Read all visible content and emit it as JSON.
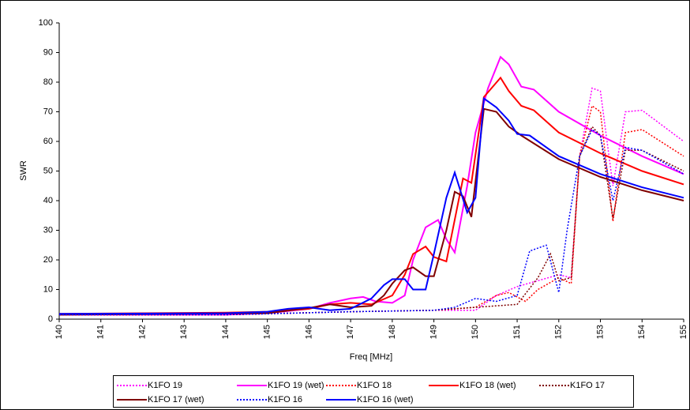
{
  "chart_data": {
    "type": "line",
    "x_label": "Freq [MHz]",
    "y_label": "SWR",
    "xlim": [
      140,
      155
    ],
    "xticks": [
      140,
      141,
      142,
      143,
      144,
      145,
      146,
      147,
      148,
      149,
      150,
      151,
      152,
      153,
      154,
      155
    ],
    "ylim": [
      0,
      100
    ],
    "yticks": [
      0,
      10,
      20,
      30,
      40,
      50,
      60,
      70,
      80,
      90,
      100
    ],
    "legend": "bottom",
    "series": [
      {
        "name": "K1FO 19",
        "color": "#ff00ff",
        "style": "dotted",
        "x": [
          140,
          144,
          147,
          149,
          150,
          150.5,
          151,
          151.5,
          152,
          152.3,
          152.5,
          152.8,
          153,
          153.3,
          153.6,
          154,
          155
        ],
        "values": [
          1.5,
          1.5,
          2.5,
          3,
          3,
          8,
          11,
          13,
          15,
          14,
          55,
          78,
          77,
          45,
          70,
          70.5,
          60
        ]
      },
      {
        "name": "K1FO 19 (wet)",
        "color": "#ff00ff",
        "style": "solid",
        "x": [
          140,
          144,
          145,
          146,
          146.5,
          147,
          147.3,
          147.6,
          148,
          148.3,
          148.5,
          148.8,
          149.1,
          149.3,
          149.5,
          149.8,
          150,
          150.3,
          150.6,
          150.8,
          151.1,
          151.4,
          152,
          153,
          154,
          155
        ],
        "values": [
          1.5,
          1.5,
          2,
          3.5,
          5.5,
          7,
          7.5,
          6,
          5.5,
          8,
          20,
          31,
          33.5,
          27,
          22.5,
          45,
          63,
          78,
          88.5,
          86,
          78.5,
          77.5,
          70,
          62,
          55,
          49
        ]
      },
      {
        "name": "K1FO 18",
        "color": "#ff0000",
        "style": "dotted",
        "x": [
          140,
          144,
          147,
          149,
          150,
          150.5,
          150.8,
          151.2,
          151.5,
          152,
          152.3,
          152.5,
          152.8,
          153,
          153.3,
          153.6,
          154,
          155
        ],
        "values": [
          1.5,
          1.5,
          2.5,
          3,
          4,
          8,
          9,
          6,
          10,
          14,
          12,
          55,
          72,
          70,
          33,
          63,
          64,
          55
        ]
      },
      {
        "name": "K1FO 18 (wet)",
        "color": "#ff0000",
        "style": "solid",
        "x": [
          140,
          144,
          145,
          146,
          146.5,
          147,
          147.5,
          148,
          148.3,
          148.5,
          148.8,
          149,
          149.3,
          149.7,
          149.9,
          150.2,
          150.6,
          150.8,
          151.1,
          151.4,
          152,
          153,
          154,
          155
        ],
        "values": [
          1.8,
          2.2,
          2.5,
          3.5,
          5,
          5.5,
          5,
          8,
          15,
          22,
          24.5,
          21,
          19.5,
          47.5,
          46,
          75,
          81.5,
          77,
          72,
          70.5,
          63,
          56,
          50,
          45.5
        ]
      },
      {
        "name": "K1FO 17",
        "color": "#800000",
        "style": "dotted",
        "x": [
          140,
          144,
          147,
          149,
          150,
          151,
          151.5,
          151.8,
          152,
          152.3,
          152.5,
          152.8,
          153,
          153.3,
          153.6,
          154,
          155
        ],
        "values": [
          1.5,
          1.5,
          2.5,
          3,
          4,
          5,
          14,
          22,
          13,
          14,
          55,
          65,
          62,
          34,
          57,
          57,
          50
        ]
      },
      {
        "name": "K1FO 17 (wet)",
        "color": "#800000",
        "style": "solid",
        "x": [
          140,
          145,
          146,
          146.5,
          147,
          147.5,
          147.8,
          148,
          148.3,
          148.5,
          148.8,
          149,
          149.3,
          149.5,
          149.7,
          149.9,
          150.2,
          150.5,
          150.8,
          151.1,
          152,
          153,
          154,
          155
        ],
        "values": [
          1.5,
          2,
          3.8,
          5,
          4,
          4.5,
          8,
          12,
          16.5,
          17.5,
          14.5,
          14.5,
          30,
          43,
          41.5,
          34.5,
          71,
          70,
          65,
          62,
          54,
          48,
          43.5,
          40
        ]
      },
      {
        "name": "K1FO 16",
        "color": "#0000ff",
        "style": "dotted",
        "x": [
          140,
          144,
          147,
          149,
          149.5,
          150,
          150.5,
          151,
          151.3,
          151.7,
          152,
          152.2,
          152.5,
          152.8,
          153,
          153.3,
          153.6,
          154,
          155
        ],
        "values": [
          1.5,
          1.5,
          2.5,
          3,
          4,
          7,
          6,
          8,
          23,
          25,
          9,
          30,
          55,
          64,
          62,
          40,
          58,
          57,
          49
        ]
      },
      {
        "name": "K1FO 16 (wet)",
        "color": "#0000ff",
        "style": "solid",
        "x": [
          140,
          144,
          145,
          145.5,
          146,
          146.5,
          147,
          147.5,
          147.8,
          148,
          148.3,
          148.5,
          148.8,
          149,
          149.3,
          149.5,
          149.8,
          150,
          150.2,
          150.5,
          150.8,
          151,
          151.3,
          152,
          153,
          154,
          155
        ],
        "values": [
          1.8,
          2,
          2.5,
          3.5,
          4,
          3,
          3.5,
          7,
          11.5,
          13.5,
          13.5,
          10,
          10,
          22,
          41,
          49.5,
          36,
          41,
          74.5,
          71.5,
          67,
          62.5,
          62,
          55,
          49,
          44.5,
          41
        ]
      }
    ]
  }
}
